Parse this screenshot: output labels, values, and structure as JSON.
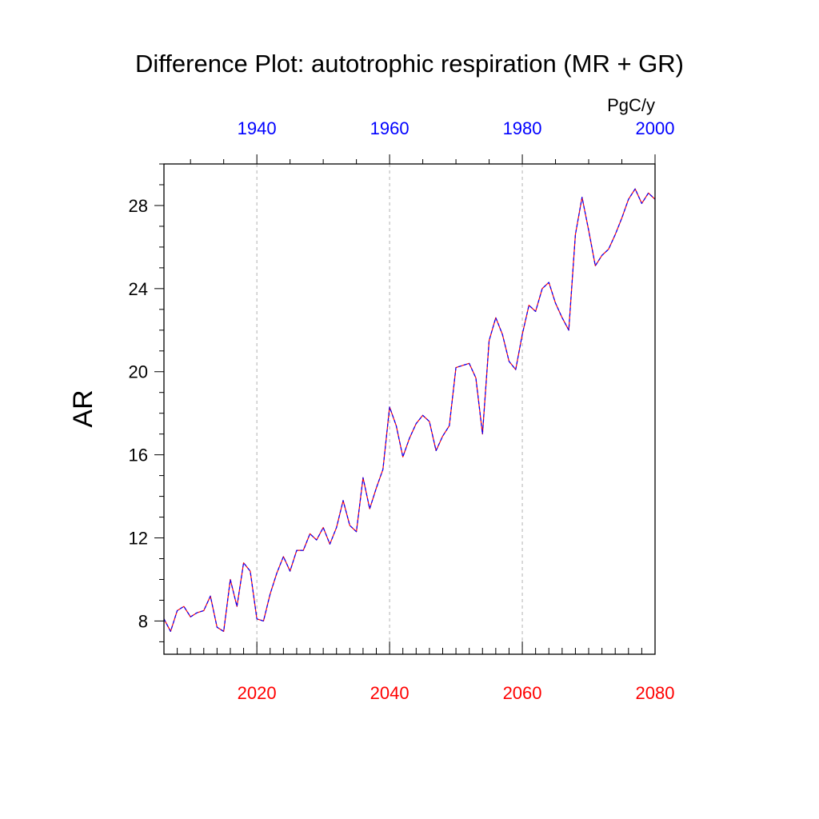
{
  "chart_data": {
    "type": "line",
    "title": "Difference Plot: autotrophic respiration (MR + GR)",
    "units": "PgC/y",
    "ylabel": "AR",
    "xlabel": "",
    "ylim": [
      6.4,
      30
    ],
    "xlim_bottom": [
      2006,
      2080
    ],
    "xlim_top": [
      1926,
      2000
    ],
    "yticks": [
      8,
      12,
      16,
      20,
      24,
      28
    ],
    "xticks_bottom": [
      2020,
      2040,
      2060,
      2080
    ],
    "xticks_top": [
      1940,
      1960,
      1980,
      2000
    ],
    "bottom_axis_color": "#ff0000",
    "top_axis_color": "#0000ff",
    "grid": "vertical dashed at bottom major ticks",
    "series": [
      {
        "color": "#ff0000",
        "style": "solid",
        "x": [
          2006,
          2007,
          2008,
          2009,
          2010,
          2011,
          2012,
          2013,
          2014,
          2015,
          2016,
          2017,
          2018,
          2019,
          2020,
          2021,
          2022,
          2023,
          2024,
          2025,
          2026,
          2027,
          2028,
          2029,
          2030,
          2031,
          2032,
          2033,
          2034,
          2035,
          2036,
          2037,
          2038,
          2039,
          2040,
          2041,
          2042,
          2043,
          2044,
          2045,
          2046,
          2047,
          2048,
          2049,
          2050,
          2051,
          2052,
          2053,
          2054,
          2055,
          2056,
          2057,
          2058,
          2059,
          2060,
          2061,
          2062,
          2063,
          2064,
          2065,
          2066,
          2067,
          2068,
          2069,
          2070,
          2071,
          2072,
          2073,
          2074,
          2075,
          2076,
          2077,
          2078,
          2079,
          2080
        ],
        "values": [
          8.1,
          7.5,
          8.5,
          8.7,
          8.2,
          8.4,
          8.5,
          9.2,
          7.7,
          7.5,
          10.0,
          8.7,
          10.8,
          10.4,
          8.1,
          8.0,
          9.3,
          10.3,
          11.1,
          10.4,
          11.4,
          11.4,
          12.2,
          11.9,
          12.5,
          11.7,
          12.5,
          13.8,
          12.6,
          12.3,
          14.9,
          13.4,
          14.4,
          15.3,
          18.3,
          17.4,
          15.9,
          16.8,
          17.5,
          17.9,
          17.6,
          16.2,
          16.9,
          17.4,
          20.2,
          20.3,
          20.4,
          19.7,
          17.0,
          21.5,
          22.6,
          21.8,
          20.5,
          20.1,
          21.8,
          23.2,
          22.9,
          24.0,
          24.3,
          23.3,
          22.6,
          22.0,
          26.6,
          28.4,
          26.8,
          25.1,
          25.6,
          25.9,
          26.6,
          27.4,
          28.3,
          28.8,
          28.1,
          28.6,
          28.3
        ]
      },
      {
        "color": "#0000ff",
        "style": "dashed",
        "x": [
          2006,
          2007,
          2008,
          2009,
          2010,
          2011,
          2012,
          2013,
          2014,
          2015,
          2016,
          2017,
          2018,
          2019,
          2020,
          2021,
          2022,
          2023,
          2024,
          2025,
          2026,
          2027,
          2028,
          2029,
          2030,
          2031,
          2032,
          2033,
          2034,
          2035,
          2036,
          2037,
          2038,
          2039,
          2040,
          2041,
          2042,
          2043,
          2044,
          2045,
          2046,
          2047,
          2048,
          2049,
          2050,
          2051,
          2052,
          2053,
          2054,
          2055,
          2056,
          2057,
          2058,
          2059,
          2060,
          2061,
          2062,
          2063,
          2064,
          2065,
          2066,
          2067,
          2068,
          2069,
          2070,
          2071,
          2072,
          2073,
          2074,
          2075,
          2076,
          2077,
          2078,
          2079,
          2080
        ],
        "values": [
          8.1,
          7.5,
          8.5,
          8.7,
          8.2,
          8.4,
          8.5,
          9.2,
          7.7,
          7.5,
          10.0,
          8.7,
          10.8,
          10.4,
          8.1,
          8.0,
          9.3,
          10.3,
          11.1,
          10.4,
          11.4,
          11.4,
          12.2,
          11.9,
          12.5,
          11.7,
          12.5,
          13.8,
          12.6,
          12.3,
          14.9,
          13.4,
          14.4,
          15.3,
          18.3,
          17.4,
          15.9,
          16.8,
          17.5,
          17.9,
          17.6,
          16.2,
          16.9,
          17.4,
          20.2,
          20.3,
          20.4,
          19.7,
          17.0,
          21.5,
          22.6,
          21.8,
          20.5,
          20.1,
          21.8,
          23.2,
          22.9,
          24.0,
          24.3,
          23.3,
          22.6,
          22.0,
          26.6,
          28.4,
          26.8,
          25.1,
          25.6,
          25.9,
          26.6,
          27.4,
          28.3,
          28.8,
          28.1,
          28.6,
          28.3
        ]
      }
    ]
  }
}
